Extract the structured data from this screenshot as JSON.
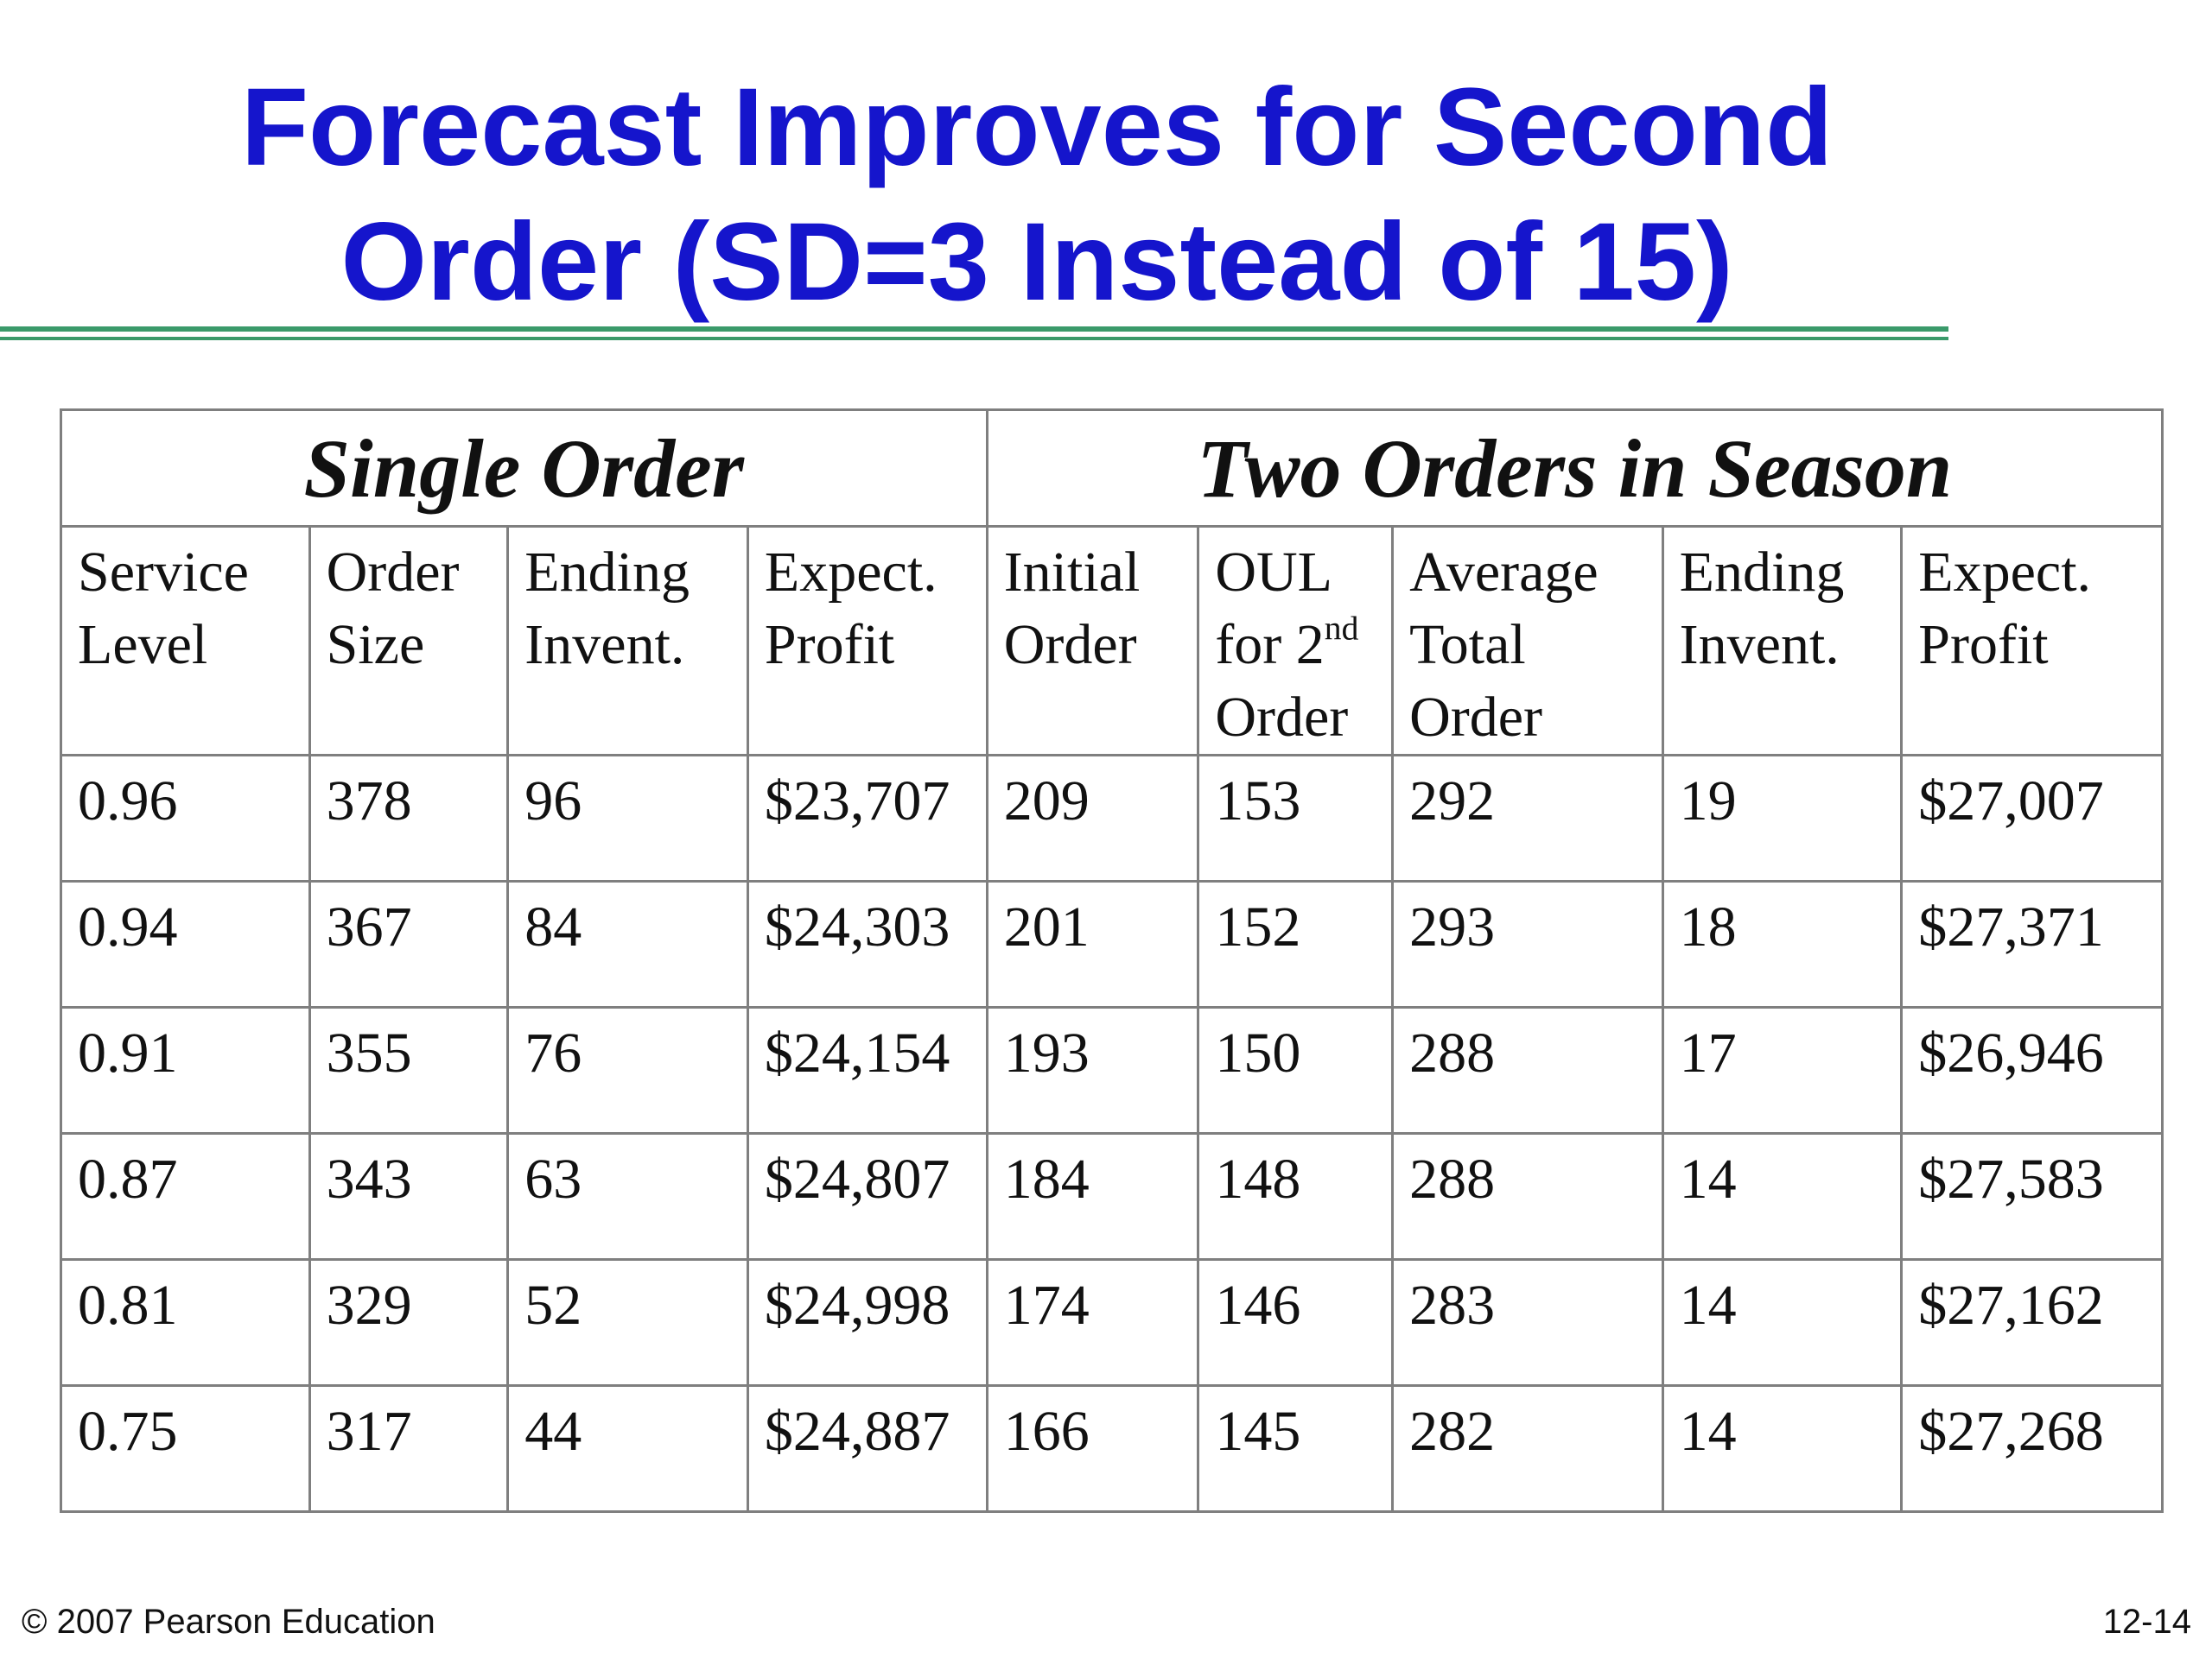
{
  "title": {
    "line1": "Forecast Improves for Second",
    "line2": "Order (SD=3 Instead of 15)"
  },
  "table": {
    "group_single": "Single Order",
    "group_two": "Two Orders in Season",
    "columns": [
      {
        "lines": [
          "Service",
          "Level"
        ]
      },
      {
        "lines": [
          "Order",
          "Size"
        ]
      },
      {
        "lines": [
          "Ending",
          "Invent."
        ]
      },
      {
        "lines": [
          "Expect.",
          "Profit"
        ]
      },
      {
        "lines": [
          "Initial",
          "Order"
        ]
      },
      {
        "lines": [
          "OUL",
          "for 2",
          "Order"
        ],
        "superscript": "nd"
      },
      {
        "lines": [
          "Average",
          "Total",
          "Order"
        ]
      },
      {
        "lines": [
          "Ending",
          "Invent."
        ]
      },
      {
        "lines": [
          "Expect.",
          "Profit"
        ]
      }
    ],
    "rows": [
      [
        "0.96",
        "378",
        "96",
        "$23,707",
        "209",
        "153",
        "292",
        "19",
        "$27,007"
      ],
      [
        "0.94",
        "367",
        "84",
        "$24,303",
        "201",
        "152",
        "293",
        "18",
        "$27,371"
      ],
      [
        "0.91",
        "355",
        "76",
        "$24,154",
        "193",
        "150",
        "288",
        "17",
        "$26,946"
      ],
      [
        "0.87",
        "343",
        "63",
        "$24,807",
        "184",
        "148",
        "288",
        "14",
        "$27,583"
      ],
      [
        "0.81",
        "329",
        "52",
        "$24,998",
        "174",
        "146",
        "283",
        "14",
        "$27,162"
      ],
      [
        "0.75",
        "317",
        "44",
        "$24,887",
        "166",
        "145",
        "282",
        "14",
        "$27,268"
      ]
    ]
  },
  "footer": {
    "copyright": "© 2007 Pearson Education",
    "page": "12-14"
  },
  "colors": {
    "title": "#1515cc",
    "rule": "#3a9a6a",
    "grid": "#7f7f7f"
  }
}
